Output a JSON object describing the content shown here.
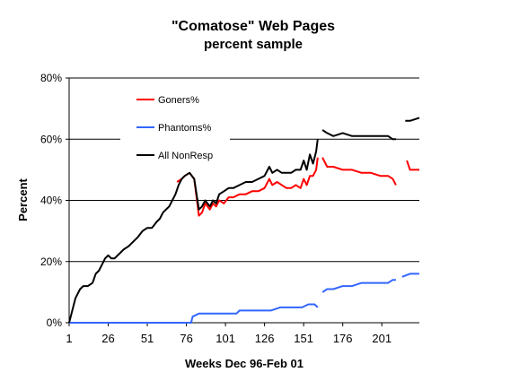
{
  "chart_data": {
    "type": "line",
    "title": "\"Comatose\" Web Pages",
    "subtitle": "percent sample",
    "xlabel": "Weeks Dec 96-Feb 01",
    "ylabel": "Percent",
    "xlim": [
      1,
      225
    ],
    "ylim": [
      0,
      80
    ],
    "x_ticks": [
      1,
      26,
      51,
      76,
      101,
      126,
      151,
      176,
      201
    ],
    "y_ticks": [
      0,
      20,
      40,
      60,
      80
    ],
    "y_tick_labels": [
      "0%",
      "20%",
      "40%",
      "60%",
      "80%"
    ],
    "grid": "horizontal",
    "legend_placement": "upper-left inside plot",
    "series": [
      {
        "name": "Goners%",
        "color": "#ff0000",
        "segments": [
          [
            [
              70,
              46
            ],
            [
              73,
              47
            ],
            [
              75,
              48
            ],
            [
              78,
              49
            ],
            [
              81,
              47
            ],
            [
              84,
              35
            ],
            [
              86,
              36
            ],
            [
              88,
              39
            ],
            [
              91,
              37
            ],
            [
              93,
              39
            ],
            [
              95,
              38
            ],
            [
              97,
              40
            ],
            [
              100,
              39
            ],
            [
              103,
              41
            ],
            [
              106,
              41
            ],
            [
              110,
              42
            ],
            [
              114,
              42
            ],
            [
              118,
              43
            ],
            [
              122,
              43
            ],
            [
              126,
              44
            ],
            [
              129,
              47
            ],
            [
              131,
              45
            ],
            [
              134,
              46
            ],
            [
              137,
              45
            ],
            [
              140,
              44
            ],
            [
              143,
              44
            ],
            [
              146,
              45
            ],
            [
              149,
              44
            ],
            [
              151,
              47
            ],
            [
              153,
              45
            ],
            [
              155,
              48
            ],
            [
              157,
              48
            ],
            [
              159,
              50
            ],
            [
              160,
              54
            ]
          ],
          [
            [
              163,
              54
            ],
            [
              166,
              51
            ],
            [
              170,
              51
            ],
            [
              176,
              50
            ],
            [
              182,
              50
            ],
            [
              188,
              49
            ],
            [
              194,
              49
            ],
            [
              200,
              48
            ],
            [
              205,
              48
            ],
            [
              208,
              47
            ],
            [
              210,
              45
            ]
          ],
          [
            [
              217,
              53
            ],
            [
              219,
              50
            ],
            [
              225,
              50
            ]
          ]
        ]
      },
      {
        "name": "Phantoms%",
        "color": "#3366ff",
        "segments": [
          [
            [
              1,
              0
            ],
            [
              20,
              0
            ],
            [
              40,
              0
            ],
            [
              60,
              0
            ],
            [
              79,
              0
            ],
            [
              80,
              2
            ],
            [
              84,
              3
            ],
            [
              90,
              3
            ],
            [
              100,
              3
            ],
            [
              108,
              3
            ],
            [
              110,
              4
            ],
            [
              120,
              4
            ],
            [
              128,
              4
            ],
            [
              130,
              4
            ],
            [
              136,
              5
            ],
            [
              144,
              5
            ],
            [
              150,
              5
            ],
            [
              154,
              6
            ],
            [
              158,
              6
            ],
            [
              160,
              5
            ]
          ],
          [
            [
              163,
              10
            ],
            [
              166,
              11
            ],
            [
              170,
              11
            ],
            [
              176,
              12
            ],
            [
              182,
              12
            ],
            [
              188,
              13
            ],
            [
              194,
              13
            ],
            [
              200,
              13
            ],
            [
              205,
              13
            ],
            [
              208,
              14
            ],
            [
              210,
              14
            ]
          ],
          [
            [
              214,
              15
            ],
            [
              219,
              16
            ],
            [
              225,
              16
            ]
          ]
        ]
      },
      {
        "name": "All NonResp",
        "color": "#000000",
        "segments": [
          [
            [
              1,
              0
            ],
            [
              3,
              4
            ],
            [
              5,
              8
            ],
            [
              8,
              11
            ],
            [
              10,
              12
            ],
            [
              13,
              12
            ],
            [
              16,
              13
            ],
            [
              18,
              16
            ],
            [
              20,
              17
            ],
            [
              22,
              19
            ],
            [
              24,
              21
            ],
            [
              26,
              22
            ],
            [
              28,
              21
            ],
            [
              30,
              21
            ],
            [
              32,
              22
            ],
            [
              34,
              23
            ],
            [
              36,
              24
            ],
            [
              39,
              25
            ],
            [
              41,
              26
            ],
            [
              43,
              27
            ],
            [
              45,
              28
            ],
            [
              48,
              30
            ],
            [
              51,
              31
            ],
            [
              54,
              31
            ],
            [
              57,
              33
            ],
            [
              59,
              34
            ],
            [
              61,
              36
            ],
            [
              63,
              37
            ],
            [
              65,
              38
            ],
            [
              67,
              40
            ],
            [
              69,
              42
            ],
            [
              71,
              45
            ],
            [
              73,
              47
            ],
            [
              75,
              48
            ],
            [
              78,
              49
            ],
            [
              81,
              47
            ],
            [
              84,
              37
            ],
            [
              86,
              38
            ],
            [
              88,
              40
            ],
            [
              91,
              38
            ],
            [
              93,
              40
            ],
            [
              95,
              39
            ],
            [
              97,
              42
            ],
            [
              100,
              43
            ],
            [
              103,
              44
            ],
            [
              106,
              44
            ],
            [
              110,
              45
            ],
            [
              114,
              46
            ],
            [
              118,
              46
            ],
            [
              122,
              47
            ],
            [
              126,
              48
            ],
            [
              129,
              51
            ],
            [
              131,
              49
            ],
            [
              134,
              50
            ],
            [
              137,
              49
            ],
            [
              140,
              49
            ],
            [
              143,
              49
            ],
            [
              146,
              50
            ],
            [
              149,
              50
            ],
            [
              151,
              53
            ],
            [
              153,
              50
            ],
            [
              155,
              55
            ],
            [
              157,
              52
            ],
            [
              159,
              56
            ],
            [
              160,
              60
            ]
          ],
          [
            [
              163,
              63
            ],
            [
              166,
              62
            ],
            [
              170,
              61
            ],
            [
              176,
              62
            ],
            [
              182,
              61
            ],
            [
              188,
              61
            ],
            [
              194,
              61
            ],
            [
              200,
              61
            ],
            [
              205,
              61
            ],
            [
              208,
              60
            ],
            [
              210,
              60
            ]
          ],
          [
            [
              216,
              66
            ],
            [
              219,
              66
            ],
            [
              225,
              67
            ]
          ]
        ]
      }
    ]
  }
}
